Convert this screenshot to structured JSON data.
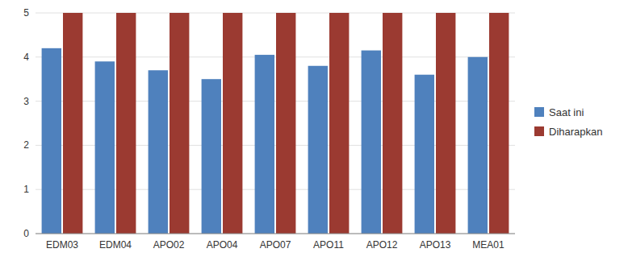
{
  "chart_data": {
    "type": "bar",
    "categories": [
      "EDM03",
      "EDM04",
      "APO02",
      "APO04",
      "APO07",
      "APO11",
      "APO12",
      "APO13",
      "MEA01"
    ],
    "series": [
      {
        "name": "Saat ini",
        "color": "#4F81BD",
        "values": [
          4.2,
          3.9,
          3.7,
          3.5,
          4.05,
          3.8,
          4.15,
          3.6,
          4.0
        ]
      },
      {
        "name": "Diharapkan",
        "color": "#9B3A31",
        "values": [
          5.0,
          5.0,
          5.0,
          5.0,
          5.0,
          5.0,
          5.0,
          5.0,
          5.0
        ]
      }
    ],
    "ylim": [
      0,
      5
    ],
    "yticks": [
      0,
      1,
      2,
      3,
      4,
      5
    ],
    "grid": true,
    "legend": "right"
  }
}
